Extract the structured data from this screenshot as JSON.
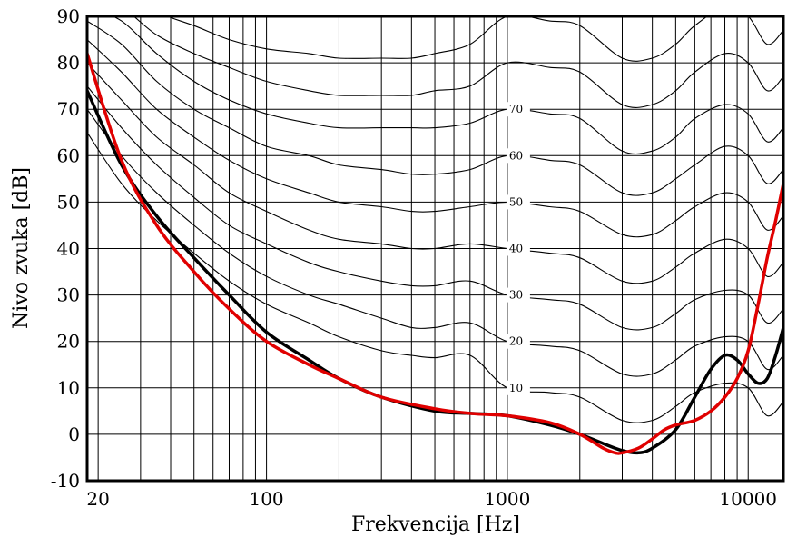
{
  "chart_data": {
    "type": "line",
    "title": "",
    "xlabel": "Frekvencija [Hz]",
    "ylabel": "Nivo zvuka [dB]",
    "xscale": "log",
    "xlim": [
      18,
      14000
    ],
    "ylim": [
      -10,
      90
    ],
    "grid": true,
    "legend": "none",
    "x_tick_labels": [
      {
        "value": 20,
        "label": "20"
      },
      {
        "value": 100,
        "label": "100"
      },
      {
        "value": 1000,
        "label": "1000"
      },
      {
        "value": 10000,
        "label": "10000"
      }
    ],
    "y_ticks": [
      -10,
      0,
      10,
      20,
      30,
      40,
      50,
      60,
      70,
      80,
      90
    ],
    "contour_labels": [
      {
        "level": 10,
        "label": "10"
      },
      {
        "level": 20,
        "label": "20"
      },
      {
        "level": 30,
        "label": "30"
      },
      {
        "level": 40,
        "label": "40"
      },
      {
        "level": 50,
        "label": "50"
      },
      {
        "level": 60,
        "label": "60"
      },
      {
        "level": 70,
        "label": "70"
      }
    ],
    "contour_curves": [
      {
        "level": 10,
        "x": [
          18,
          25,
          35,
          50,
          70,
          100,
          150,
          200,
          300,
          400,
          500,
          700,
          1000,
          1500,
          2000,
          3000,
          4000,
          5000,
          6000,
          8000,
          10000,
          12000,
          14000
        ],
        "y": [
          65,
          54,
          46,
          39,
          33,
          28,
          24,
          21,
          18,
          17,
          16.5,
          17,
          10,
          9,
          8,
          3,
          3,
          6,
          9,
          11,
          10,
          4,
          7
        ]
      },
      {
        "level": 20,
        "x": [
          18,
          25,
          35,
          50,
          70,
          100,
          150,
          200,
          300,
          400,
          500,
          700,
          1000,
          1500,
          2000,
          3000,
          4000,
          5000,
          6000,
          8000,
          10000,
          12000,
          14000
        ],
        "y": [
          70,
          60,
          52,
          45,
          39,
          34,
          30,
          28,
          25,
          23,
          23,
          24,
          20,
          19,
          18,
          13,
          13,
          16,
          19,
          21,
          20,
          14,
          17
        ]
      },
      {
        "level": 30,
        "x": [
          18,
          25,
          35,
          50,
          70,
          100,
          150,
          200,
          300,
          400,
          500,
          700,
          1000,
          1500,
          2000,
          3000,
          4000,
          5000,
          6000,
          8000,
          10000,
          12000,
          14000
        ],
        "y": [
          75,
          66,
          58,
          51,
          45,
          41,
          37,
          35,
          33,
          32,
          32,
          33,
          30,
          29,
          28,
          23,
          23,
          26,
          29,
          31,
          30,
          24,
          27
        ]
      },
      {
        "level": 40,
        "x": [
          18,
          25,
          35,
          50,
          70,
          100,
          150,
          200,
          300,
          400,
          500,
          700,
          1000,
          1500,
          2000,
          3000,
          4000,
          5000,
          6000,
          8000,
          10000,
          12000,
          14000
        ],
        "y": [
          80,
          72,
          64,
          58,
          52,
          48,
          44,
          42,
          41,
          40,
          40,
          41,
          40,
          39,
          38,
          33,
          33,
          36,
          39,
          42,
          40,
          34,
          37
        ]
      },
      {
        "level": 50,
        "x": [
          18,
          25,
          35,
          50,
          70,
          100,
          150,
          200,
          300,
          400,
          500,
          700,
          1000,
          1500,
          2000,
          3000,
          4000,
          5000,
          6000,
          8000,
          10000,
          12000,
          14000
        ],
        "y": [
          85,
          78,
          70,
          64,
          59,
          55,
          52,
          50,
          49,
          48,
          48,
          49,
          50,
          49,
          48,
          43,
          43,
          46,
          49,
          52,
          50,
          44,
          47
        ]
      },
      {
        "level": 60,
        "x": [
          18,
          25,
          35,
          50,
          70,
          100,
          150,
          200,
          300,
          400,
          500,
          700,
          1000,
          1500,
          2000,
          3000,
          4000,
          5000,
          6000,
          8000,
          10000,
          12000,
          14000
        ],
        "y": [
          89,
          84,
          76,
          70,
          66,
          62,
          60,
          58,
          57,
          56,
          56,
          57,
          60,
          59,
          58,
          52,
          52,
          55,
          58,
          62,
          60,
          54,
          57
        ]
      },
      {
        "level": 70,
        "x": [
          18,
          25,
          35,
          50,
          70,
          100,
          150,
          200,
          300,
          400,
          500,
          700,
          1000,
          1500,
          2000,
          3000,
          4000,
          5000,
          6000,
          8000,
          10000,
          12000,
          14000
        ],
        "y": [
          92,
          89,
          82,
          76,
          72,
          69,
          67,
          66,
          66,
          66,
          66,
          67,
          70,
          69,
          68,
          61,
          61,
          64,
          68,
          71,
          69,
          63,
          66
        ]
      },
      {
        "level": 80,
        "x": [
          18,
          25,
          35,
          50,
          70,
          100,
          150,
          200,
          300,
          400,
          500,
          700,
          1000,
          1500,
          2000,
          3000,
          4000,
          5000,
          6000,
          8000,
          10000,
          12000,
          14000
        ],
        "y": [
          95,
          92,
          86,
          82,
          79,
          76,
          74,
          73,
          73,
          73,
          74,
          75,
          80,
          79,
          78,
          71,
          71,
          74,
          78,
          82,
          80,
          74,
          77
        ]
      },
      {
        "level": 90,
        "x": [
          18,
          25,
          35,
          50,
          70,
          100,
          150,
          200,
          300,
          400,
          500,
          700,
          1000,
          1500,
          2000,
          3000,
          4000,
          5000,
          6000,
          8000,
          10000,
          12000,
          14000
        ],
        "y": [
          98,
          96,
          91,
          88,
          85,
          83,
          82,
          81,
          81,
          81,
          82,
          84,
          90,
          89,
          88,
          81,
          81,
          84,
          88,
          92,
          90,
          84,
          87
        ]
      }
    ],
    "series": [
      {
        "color": "#000000",
        "x": [
          18,
          25,
          35,
          50,
          70,
          100,
          150,
          200,
          300,
          500,
          700,
          1000,
          1500,
          2000,
          2500,
          3000,
          3500,
          4000,
          5000,
          6000,
          7000,
          8000,
          9000,
          10000,
          11000,
          12000,
          13000,
          14000
        ],
        "y": [
          74,
          58,
          47,
          38,
          30,
          22,
          16,
          12,
          8,
          5,
          4.5,
          4,
          2,
          0,
          -2,
          -3.5,
          -4,
          -3,
          1,
          8,
          14,
          17,
          16,
          13,
          11,
          12,
          17,
          23
        ]
      },
      {
        "color": "#e00000",
        "x": [
          18,
          25,
          35,
          50,
          70,
          100,
          150,
          200,
          300,
          500,
          700,
          1000,
          1500,
          2000,
          2500,
          2800,
          3000,
          3500,
          4000,
          4500,
          5000,
          6000,
          7000,
          8000,
          9000,
          10000,
          11000,
          12000,
          13000,
          14000
        ],
        "y": [
          82,
          59,
          45,
          35,
          27,
          20,
          15,
          12,
          8,
          5.5,
          4.5,
          4,
          2.5,
          0,
          -3,
          -4,
          -4,
          -3,
          -1,
          1,
          2,
          3,
          5,
          8,
          12,
          18,
          28,
          38,
          46,
          54
        ]
      }
    ]
  }
}
